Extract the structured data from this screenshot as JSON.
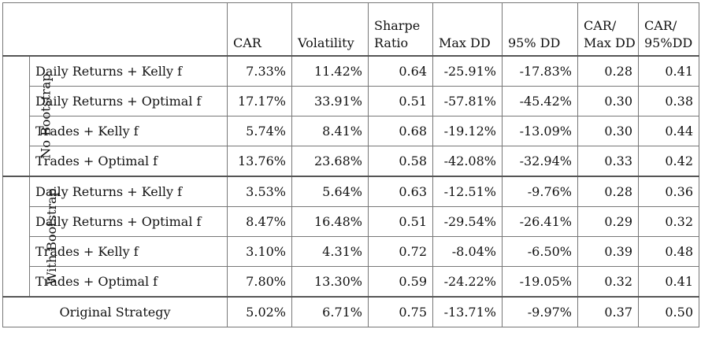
{
  "headers": {
    "car": "CAR",
    "volatility": "Volatility",
    "sharpe_1": "Sharpe",
    "sharpe_2": "Ratio",
    "maxdd": "Max DD",
    "dd95": "95% DD",
    "car_maxdd_1": "CAR/",
    "car_maxdd_2": "Max DD",
    "car_95dd_1": "CAR/",
    "car_95dd_2": "95%DD"
  },
  "groups": [
    {
      "label": "No Bootstrap",
      "rows": [
        {
          "name": "Daily Returns + Kelly f",
          "car": "7.33%",
          "vol": "11.42%",
          "sharpe": "0.64",
          "maxdd": "-25.91%",
          "dd95": "-17.83%",
          "car_maxdd": "0.28",
          "car_95dd": "0.41"
        },
        {
          "name": "Daily Returns + Optimal f",
          "car": "17.17%",
          "vol": "33.91%",
          "sharpe": "0.51",
          "maxdd": "-57.81%",
          "dd95": "-45.42%",
          "car_maxdd": "0.30",
          "car_95dd": "0.38"
        },
        {
          "name": "Trades + Kelly f",
          "car": "5.74%",
          "vol": "8.41%",
          "sharpe": "0.68",
          "maxdd": "-19.12%",
          "dd95": "-13.09%",
          "car_maxdd": "0.30",
          "car_95dd": "0.44"
        },
        {
          "name": "Trades + Optimal f",
          "car": "13.76%",
          "vol": "23.68%",
          "sharpe": "0.58",
          "maxdd": "-42.08%",
          "dd95": "-32.94%",
          "car_maxdd": "0.33",
          "car_95dd": "0.42"
        }
      ]
    },
    {
      "label": "With Bootstrap",
      "rows": [
        {
          "name": "Daily Returns + Kelly f",
          "car": "3.53%",
          "vol": "5.64%",
          "sharpe": "0.63",
          "maxdd": "-12.51%",
          "dd95": "-9.76%",
          "car_maxdd": "0.28",
          "car_95dd": "0.36"
        },
        {
          "name": "Daily Returns + Optimal f",
          "car": "8.47%",
          "vol": "16.48%",
          "sharpe": "0.51",
          "maxdd": "-29.54%",
          "dd95": "-26.41%",
          "car_maxdd": "0.29",
          "car_95dd": "0.32"
        },
        {
          "name": "Trades + Kelly f",
          "car": "3.10%",
          "vol": "4.31%",
          "sharpe": "0.72",
          "maxdd": "-8.04%",
          "dd95": "-6.50%",
          "car_maxdd": "0.39",
          "car_95dd": "0.48"
        },
        {
          "name": "Trades + Optimal f",
          "car": "7.80%",
          "vol": "13.30%",
          "sharpe": "0.59",
          "maxdd": "-24.22%",
          "dd95": "-19.05%",
          "car_maxdd": "0.32",
          "car_95dd": "0.41"
        }
      ]
    }
  ],
  "original": {
    "name": "Original Strategy",
    "car": "5.02%",
    "vol": "6.71%",
    "sharpe": "0.75",
    "maxdd": "-13.71%",
    "dd95": "-9.97%",
    "car_maxdd": "0.37",
    "car_95dd": "0.50"
  }
}
